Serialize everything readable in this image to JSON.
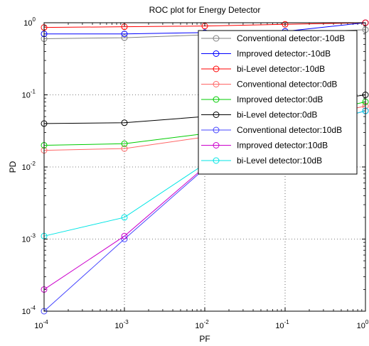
{
  "chart_data": {
    "type": "line",
    "title": "ROC plot for Energy Detector",
    "xlabel": "PF",
    "ylabel": "PD",
    "xscale": "log",
    "yscale": "log",
    "xlim": [
      0.0001,
      1
    ],
    "ylim": [
      0.0001,
      1
    ],
    "x_ticks": [
      {
        "value": 0.0001,
        "base": "10",
        "exp": "-4"
      },
      {
        "value": 0.001,
        "base": "10",
        "exp": "-3"
      },
      {
        "value": 0.01,
        "base": "10",
        "exp": "-2"
      },
      {
        "value": 0.1,
        "base": "10",
        "exp": "-1"
      },
      {
        "value": 1,
        "base": "10",
        "exp": "0"
      }
    ],
    "y_ticks": [
      {
        "value": 0.0001,
        "base": "10",
        "exp": "-4"
      },
      {
        "value": 0.001,
        "base": "10",
        "exp": "-3"
      },
      {
        "value": 0.01,
        "base": "10",
        "exp": "-2"
      },
      {
        "value": 0.1,
        "base": "10",
        "exp": "-1"
      },
      {
        "value": 1,
        "base": "10",
        "exp": "0"
      }
    ],
    "grid": true,
    "legend_position": "top-right",
    "x": [
      0.0001,
      0.001,
      0.01,
      0.1,
      1
    ],
    "series": [
      {
        "name": "Conventional detector:-10dB",
        "color": "#808080",
        "values": [
          0.6,
          0.62,
          0.68,
          0.72,
          0.8
        ]
      },
      {
        "name": "Improved detector:-10dB",
        "color": "#0000ff",
        "values": [
          0.7,
          0.7,
          0.73,
          0.76,
          1.0
        ]
      },
      {
        "name": "bi-Level detector:-10dB",
        "color": "#ff0000",
        "values": [
          0.86,
          0.88,
          0.9,
          0.95,
          1.0
        ]
      },
      {
        "name": "Conventional detector:0dB",
        "color": "#ff6666",
        "values": [
          0.017,
          0.018,
          0.026,
          0.04,
          0.07
        ]
      },
      {
        "name": "Improved detector:0dB",
        "color": "#00cc00",
        "values": [
          0.02,
          0.021,
          0.029,
          0.045,
          0.08
        ]
      },
      {
        "name": "bi-Level detector:0dB",
        "color": "#000000",
        "values": [
          0.04,
          0.041,
          0.05,
          0.07,
          0.1
        ]
      },
      {
        "name": "Conventional detector:10dB",
        "color": "#4444ff",
        "values": [
          0.0001,
          0.001,
          0.0095,
          0.03,
          0.06
        ]
      },
      {
        "name": "Improved detector:10dB",
        "color": "#cc00cc",
        "values": [
          0.0002,
          0.0011,
          0.01,
          0.03,
          0.06
        ]
      },
      {
        "name": "bi-Level detector:10dB",
        "color": "#00e5e5",
        "values": [
          0.0011,
          0.002,
          0.011,
          0.03,
          0.06
        ]
      }
    ]
  }
}
